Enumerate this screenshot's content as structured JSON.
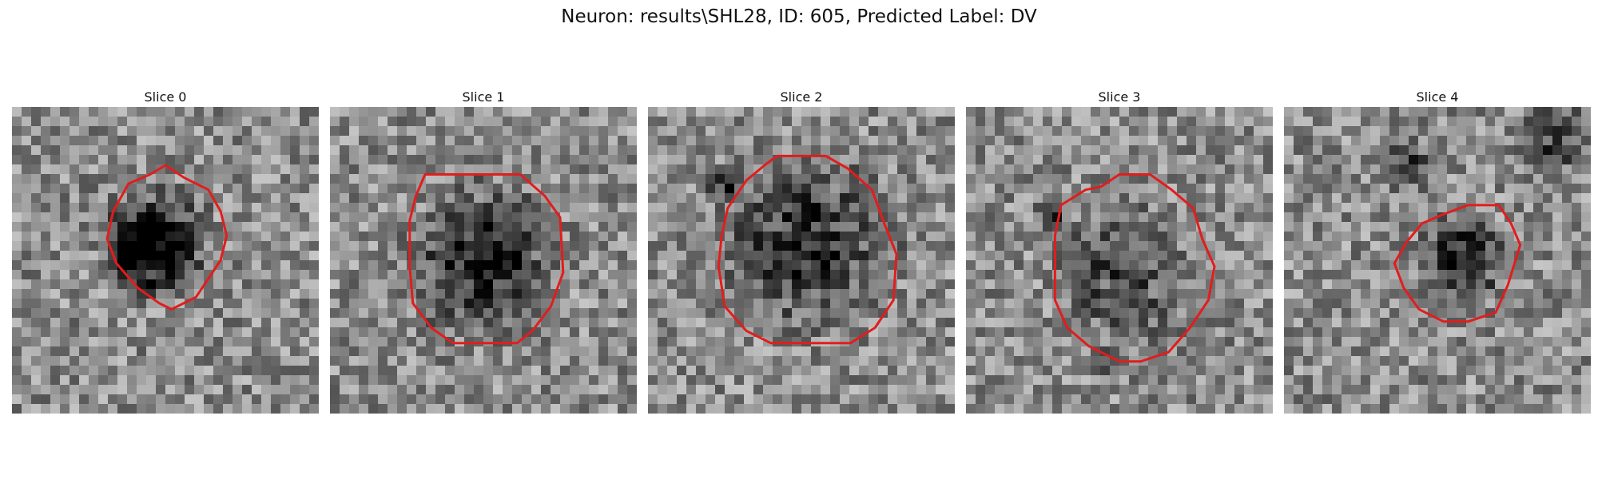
{
  "figure": {
    "title": "Neuron: results\\SHL28, ID: 605, Predicted Label: DV"
  },
  "colors": {
    "contour": "#e11d1d",
    "background": "#ffffff"
  },
  "slices": [
    {
      "title": "Slice 0",
      "seed": 11,
      "dark": [
        [
          0.47,
          0.44,
          0.22,
          0.55
        ],
        [
          0.45,
          0.47,
          0.16,
          0.5
        ]
      ],
      "contour": [
        [
          0.5,
          0.19
        ],
        [
          0.56,
          0.23
        ],
        [
          0.64,
          0.27
        ],
        [
          0.68,
          0.34
        ],
        [
          0.7,
          0.42
        ],
        [
          0.68,
          0.5
        ],
        [
          0.64,
          0.56
        ],
        [
          0.6,
          0.62
        ],
        [
          0.52,
          0.66
        ],
        [
          0.48,
          0.64
        ],
        [
          0.41,
          0.59
        ],
        [
          0.34,
          0.51
        ],
        [
          0.31,
          0.43
        ],
        [
          0.33,
          0.34
        ],
        [
          0.38,
          0.25
        ],
        [
          0.45,
          0.22
        ]
      ]
    },
    {
      "title": "Slice 1",
      "seed": 23,
      "dark": [
        [
          0.5,
          0.5,
          0.3,
          0.55
        ]
      ],
      "contour": [
        [
          0.31,
          0.22
        ],
        [
          0.62,
          0.22
        ],
        [
          0.7,
          0.29
        ],
        [
          0.75,
          0.36
        ],
        [
          0.76,
          0.54
        ],
        [
          0.72,
          0.65
        ],
        [
          0.66,
          0.73
        ],
        [
          0.61,
          0.77
        ],
        [
          0.4,
          0.77
        ],
        [
          0.33,
          0.72
        ],
        [
          0.27,
          0.64
        ],
        [
          0.26,
          0.52
        ],
        [
          0.26,
          0.37
        ],
        [
          0.28,
          0.29
        ]
      ]
    },
    {
      "title": "Slice 2",
      "seed": 37,
      "dark": [
        [
          0.52,
          0.44,
          0.35,
          0.5
        ],
        [
          0.25,
          0.25,
          0.08,
          0.55
        ]
      ],
      "contour": [
        [
          0.42,
          0.16
        ],
        [
          0.58,
          0.16
        ],
        [
          0.65,
          0.2
        ],
        [
          0.73,
          0.27
        ],
        [
          0.77,
          0.38
        ],
        [
          0.81,
          0.48
        ],
        [
          0.8,
          0.63
        ],
        [
          0.74,
          0.72
        ],
        [
          0.66,
          0.77
        ],
        [
          0.59,
          0.77
        ],
        [
          0.4,
          0.77
        ],
        [
          0.32,
          0.73
        ],
        [
          0.25,
          0.65
        ],
        [
          0.23,
          0.52
        ],
        [
          0.24,
          0.42
        ],
        [
          0.26,
          0.33
        ],
        [
          0.32,
          0.24
        ],
        [
          0.38,
          0.19
        ]
      ]
    },
    {
      "title": "Slice 3",
      "seed": 51,
      "dark": [
        [
          0.52,
          0.55,
          0.28,
          0.35
        ],
        [
          0.28,
          0.34,
          0.06,
          0.55
        ],
        [
          0.47,
          0.83,
          0.06,
          0.45
        ]
      ],
      "contour": [
        [
          0.5,
          0.22
        ],
        [
          0.6,
          0.22
        ],
        [
          0.67,
          0.27
        ],
        [
          0.74,
          0.33
        ],
        [
          0.77,
          0.43
        ],
        [
          0.81,
          0.52
        ],
        [
          0.79,
          0.63
        ],
        [
          0.73,
          0.72
        ],
        [
          0.66,
          0.8
        ],
        [
          0.57,
          0.83
        ],
        [
          0.5,
          0.83
        ],
        [
          0.4,
          0.78
        ],
        [
          0.33,
          0.72
        ],
        [
          0.29,
          0.63
        ],
        [
          0.29,
          0.42
        ],
        [
          0.31,
          0.32
        ],
        [
          0.39,
          0.27
        ],
        [
          0.44,
          0.26
        ]
      ]
    },
    {
      "title": "Slice 4",
      "seed": 67,
      "dark": [
        [
          0.58,
          0.49,
          0.18,
          0.55
        ],
        [
          0.88,
          0.1,
          0.14,
          0.45
        ],
        [
          0.42,
          0.18,
          0.12,
          0.3
        ]
      ],
      "contour": [
        [
          0.6,
          0.32
        ],
        [
          0.7,
          0.32
        ],
        [
          0.74,
          0.38
        ],
        [
          0.77,
          0.45
        ],
        [
          0.73,
          0.58
        ],
        [
          0.69,
          0.67
        ],
        [
          0.6,
          0.7
        ],
        [
          0.52,
          0.7
        ],
        [
          0.44,
          0.66
        ],
        [
          0.39,
          0.59
        ],
        [
          0.36,
          0.51
        ],
        [
          0.4,
          0.44
        ],
        [
          0.45,
          0.38
        ],
        [
          0.52,
          0.35
        ]
      ]
    }
  ]
}
